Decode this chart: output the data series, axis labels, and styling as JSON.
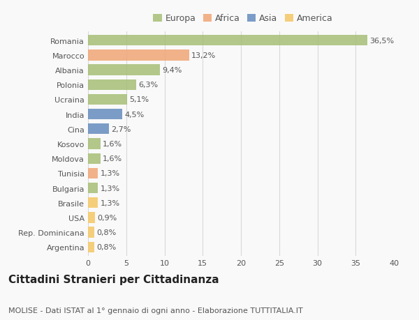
{
  "countries": [
    "Romania",
    "Marocco",
    "Albania",
    "Polonia",
    "Ucraina",
    "India",
    "Cina",
    "Kosovo",
    "Moldova",
    "Tunisia",
    "Bulgaria",
    "Brasile",
    "USA",
    "Rep. Dominicana",
    "Argentina"
  ],
  "values": [
    36.5,
    13.2,
    9.4,
    6.3,
    5.1,
    4.5,
    2.7,
    1.6,
    1.6,
    1.3,
    1.3,
    1.3,
    0.9,
    0.8,
    0.8
  ],
  "labels": [
    "36,5%",
    "13,2%",
    "9,4%",
    "6,3%",
    "5,1%",
    "4,5%",
    "2,7%",
    "1,6%",
    "1,6%",
    "1,3%",
    "1,3%",
    "1,3%",
    "0,9%",
    "0,8%",
    "0,8%"
  ],
  "continents": [
    "Europa",
    "Africa",
    "Europa",
    "Europa",
    "Europa",
    "Asia",
    "Asia",
    "Europa",
    "Europa",
    "Africa",
    "Europa",
    "America",
    "America",
    "America",
    "America"
  ],
  "colors": {
    "Europa": "#a8c07a",
    "Africa": "#f0a87a",
    "Asia": "#6a8fbf",
    "America": "#f5c96a"
  },
  "title": "Cittadini Stranieri per Cittadinanza",
  "subtitle": "MOLISE - Dati ISTAT al 1° gennaio di ogni anno - Elaborazione TUTTITALIA.IT",
  "xlim": [
    0,
    40
  ],
  "xticks": [
    0,
    5,
    10,
    15,
    20,
    25,
    30,
    35,
    40
  ],
  "background_color": "#f9f9f9",
  "grid_color": "#d8d8d8",
  "bar_height": 0.72,
  "label_fontsize": 8,
  "title_fontsize": 11,
  "subtitle_fontsize": 8,
  "tick_fontsize": 8,
  "legend_fontsize": 9
}
